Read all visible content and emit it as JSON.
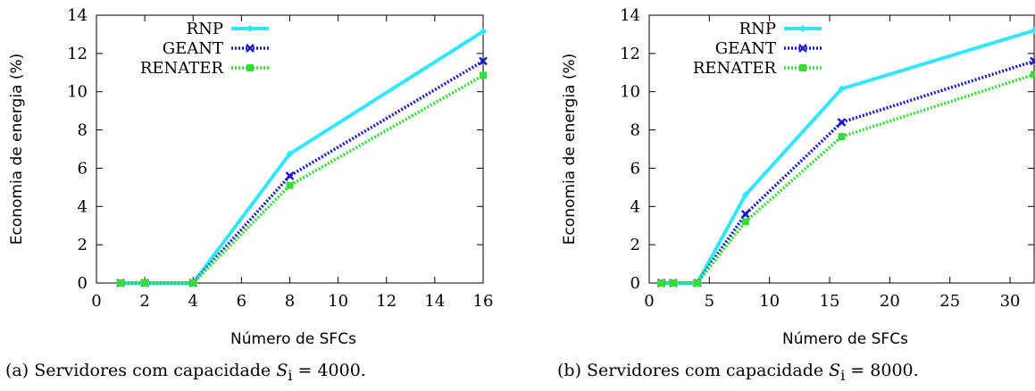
{
  "charts": [
    {
      "caption_prefix": "(a) Servidores com capacidade",
      "caption_value": "4000.",
      "chart_data": {
        "type": "line",
        "xlabel": "Número de SFCs",
        "ylabel": "Economia de energia (%)",
        "xlim": [
          0,
          16
        ],
        "ylim": [
          0,
          14
        ],
        "xticks": [
          0,
          2,
          4,
          6,
          8,
          10,
          12,
          14,
          16
        ],
        "yticks": [
          0,
          2,
          4,
          6,
          8,
          10,
          12,
          14
        ],
        "legend_position": "top-left",
        "series": [
          {
            "name": "RNP",
            "color": "#33e6ff",
            "marker": "diamond",
            "dash": "solid",
            "x": [
              1,
              2,
              4,
              8,
              16
            ],
            "y": [
              0,
              0,
              0,
              6.75,
              13.15
            ]
          },
          {
            "name": "GEANT",
            "color": "#1a1acc",
            "marker": "x",
            "dash": "dotted",
            "x": [
              1,
              2,
              4,
              8,
              16
            ],
            "y": [
              0,
              0,
              0,
              5.6,
              11.6
            ]
          },
          {
            "name": "RENATER",
            "color": "#33dd33",
            "marker": "square",
            "dash": "dotted",
            "x": [
              1,
              2,
              4,
              8,
              16
            ],
            "y": [
              0,
              0,
              0,
              5.1,
              10.85
            ]
          }
        ]
      }
    },
    {
      "caption_prefix": "(b) Servidores com capacidade",
      "caption_value": "8000.",
      "chart_data": {
        "type": "line",
        "xlabel": "Número de SFCs",
        "ylabel": "Economia de energia (%)",
        "xlim": [
          0,
          32
        ],
        "ylim": [
          0,
          14
        ],
        "xticks": [
          0,
          5,
          10,
          15,
          20,
          25,
          30
        ],
        "yticks": [
          0,
          2,
          4,
          6,
          8,
          10,
          12,
          14
        ],
        "legend_position": "top-left",
        "series": [
          {
            "name": "RNP",
            "color": "#33e6ff",
            "marker": "diamond",
            "dash": "solid",
            "x": [
              1,
              2,
              4,
              8,
              16,
              32
            ],
            "y": [
              0,
              0,
              0,
              4.6,
              10.15,
              13.2
            ]
          },
          {
            "name": "GEANT",
            "color": "#1a1acc",
            "marker": "x",
            "dash": "dotted",
            "x": [
              1,
              2,
              4,
              8,
              16,
              32
            ],
            "y": [
              0,
              0,
              0,
              3.6,
              8.4,
              11.6
            ]
          },
          {
            "name": "RENATER",
            "color": "#33dd33",
            "marker": "square",
            "dash": "dotted",
            "x": [
              1,
              2,
              4,
              8,
              16,
              32
            ],
            "y": [
              0,
              0,
              0,
              3.2,
              7.65,
              10.9
            ]
          }
        ]
      }
    }
  ],
  "caption_symbol": "S",
  "caption_sub": "i",
  "caption_eq": "="
}
